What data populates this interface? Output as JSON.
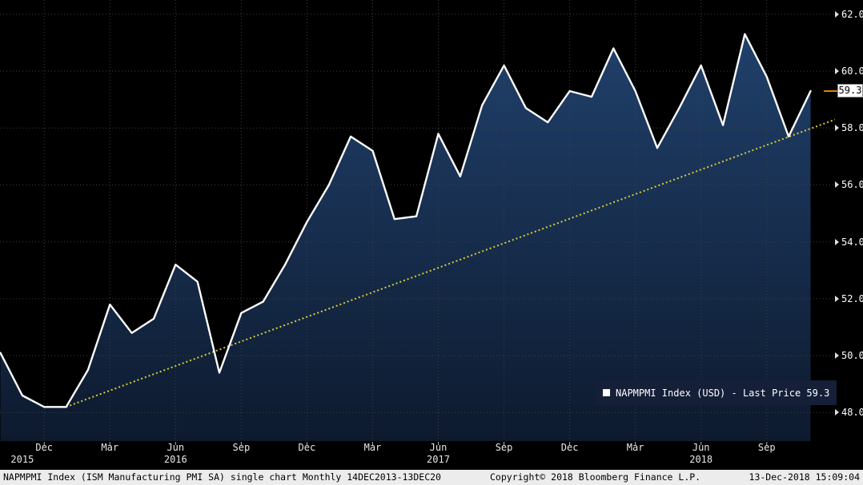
{
  "chart_data": {
    "type": "area",
    "title": "NAPMPMI Index (ISM Manufacturing PMI SA)",
    "months": [
      "Oct-15",
      "Nov-15",
      "Dec-15",
      "Jan-16",
      "Feb-16",
      "Mar-16",
      "Apr-16",
      "May-16",
      "Jun-16",
      "Jul-16",
      "Aug-16",
      "Sep-16",
      "Oct-16",
      "Nov-16",
      "Dec-16",
      "Jan-17",
      "Feb-17",
      "Mar-17",
      "Apr-17",
      "May-17",
      "Jun-17",
      "Jul-17",
      "Aug-17",
      "Sep-17",
      "Oct-17",
      "Nov-17",
      "Dec-17",
      "Jan-18",
      "Feb-18",
      "Mar-18",
      "Apr-18",
      "May-18",
      "Jun-18",
      "Jul-18",
      "Aug-18",
      "Sep-18",
      "Oct-18",
      "Nov-18"
    ],
    "values": [
      50.1,
      48.6,
      48.2,
      48.2,
      49.5,
      51.8,
      50.8,
      51.3,
      53.2,
      52.6,
      49.4,
      51.5,
      51.9,
      53.2,
      54.7,
      56.0,
      57.7,
      57.2,
      54.8,
      54.9,
      57.8,
      56.3,
      58.8,
      60.2,
      58.7,
      58.2,
      59.3,
      59.1,
      60.8,
      59.3,
      57.3,
      58.7,
      60.2,
      58.1,
      61.3,
      59.8,
      57.7,
      59.3
    ],
    "ylim": [
      47.0,
      62.5
    ],
    "y_ticks": [
      "48.0",
      "50.0",
      "52.0",
      "54.0",
      "56.0",
      "58.0",
      "60.0",
      "62.0"
    ],
    "x_tick_months": [
      "Dec",
      "Mar",
      "Jun",
      "Sep"
    ],
    "year_labels": [
      {
        "label": "2015",
        "month_index": 1
      },
      {
        "label": "2016",
        "month_index": 8
      },
      {
        "label": "2017",
        "month_index": 20
      },
      {
        "label": "2018",
        "month_index": 32
      }
    ],
    "trend_line": {
      "start_month": "Jan-16",
      "start_value": 48.2,
      "end_value": 58.3,
      "style": "dotted"
    },
    "last_price": 59.3,
    "last_price_label": "59.3",
    "grid": "dotted",
    "legend_position": "bottom-right"
  },
  "legend": {
    "text": "NAPMPMI Index (USD) - Last Price 59.3"
  },
  "footer": {
    "left": "NAPMPMI Index (ISM Manufacturing PMI SA) single chart  Monthly 14DEC2013-13DEC20",
    "copyright": "Copyright© 2018 Bloomberg Finance L.P.",
    "timestamp": "13-Dec-2018 15:09:04"
  },
  "colors": {
    "background": "#000000",
    "line": "#ffffff",
    "area_top": "#20406b",
    "area_bottom": "#0d1a2e",
    "trend": "#d9cc3a",
    "grid": "#3f3f3f",
    "bottom_tick": "#b0b0b0",
    "last_price_marker": "#e07f17",
    "legend_bg": "#151f38",
    "footer_bg": "#ececec",
    "axis_text": "#ffffff"
  }
}
